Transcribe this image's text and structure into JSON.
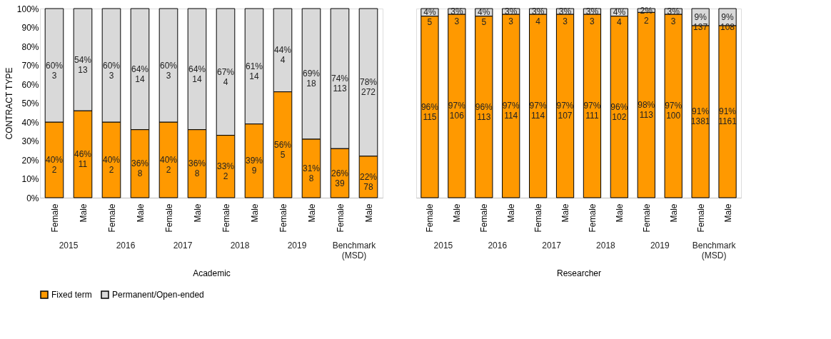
{
  "chart_data": [
    {
      "type": "bar",
      "stacked": true,
      "ylabel": "CONTRACT TYPE",
      "xlabel": "Academic",
      "categories": [
        "Female",
        "Male",
        "Female",
        "Male",
        "Female",
        "Male",
        "Female",
        "Male",
        "Female",
        "Male",
        "Female",
        "Male"
      ],
      "annotations": [
        "2015",
        "2016",
        "2017",
        "2018",
        "2019",
        "Benchmark (MSD)"
      ],
      "ylim": [
        0,
        100
      ],
      "yticks": [
        {
          "value": 0,
          "label": "0%"
        },
        {
          "value": 10,
          "label": "10%"
        },
        {
          "value": 20,
          "label": "20%"
        },
        {
          "value": 30,
          "label": "30%"
        },
        {
          "value": 40,
          "label": "40%"
        },
        {
          "value": 50,
          "label": "50%"
        },
        {
          "value": 60,
          "label": "60%"
        },
        {
          "value": 70,
          "label": "70%"
        },
        {
          "value": 80,
          "label": "80%"
        },
        {
          "value": 90,
          "label": "90%"
        },
        {
          "value": 100,
          "label": "100%"
        }
      ],
      "grid": false,
      "legend": "bottom",
      "series": [
        {
          "name": "Fixed term",
          "color": "#ff9900",
          "values": [
            40,
            46,
            40,
            36,
            40,
            36,
            33,
            39,
            56,
            31,
            26,
            22
          ],
          "value_labels": [
            "40%\n2",
            "46%\n11",
            "40%\n2",
            "36%\n8",
            "40%\n2",
            "36%\n8",
            "33%\n2",
            "39%\n9",
            "56%\n5",
            "31%\n8",
            "26%\n39",
            "22%\n78"
          ]
        },
        {
          "name": "Permanent/Open-ended",
          "color": "#d9d9d9",
          "values": [
            60,
            54,
            60,
            64,
            60,
            64,
            67,
            61,
            44,
            69,
            74,
            78
          ],
          "value_labels": [
            "60%\n3",
            "54%\n13",
            "60%\n3",
            "64%\n14",
            "60%\n3",
            "64%\n14",
            "67%\n4",
            "61%\n14",
            "44%\n4",
            "69%\n18",
            "74%\n113",
            "78%\n272"
          ]
        }
      ]
    },
    {
      "type": "bar",
      "stacked": true,
      "xlabel": "Researcher",
      "categories": [
        "Female",
        "Male",
        "Female",
        "Male",
        "Female",
        "Male",
        "Female",
        "Male",
        "Female",
        "Male",
        "Female",
        "Male"
      ],
      "annotations": [
        "2015",
        "2016",
        "2017",
        "2018",
        "2019",
        "Benchmark (MSD)"
      ],
      "ylim": [
        0,
        100
      ],
      "tick_labels": "x",
      "grid": false,
      "series": [
        {
          "color": "#ff9900",
          "values": [
            96,
            97,
            96,
            97,
            97,
            97,
            97,
            96,
            98,
            97,
            91,
            91
          ],
          "value_labels": [
            "96%\n115",
            "97%\n106",
            "96%\n113",
            "97%\n114",
            "97%\n114",
            "97%\n107",
            "97%\n111",
            "96%\n102",
            "98%\n113",
            "97%\n100",
            "91%\n1381",
            "91%\n1161"
          ]
        },
        {
          "color": "#d9d9d9",
          "values": [
            4,
            3,
            4,
            3,
            3,
            3,
            3,
            4,
            2,
            3,
            9,
            9
          ],
          "value_labels": [
            "4%\n5",
            "3%\n3",
            "4%\n5",
            "3%\n3",
            "3%\n4",
            "3%\n3",
            "3%\n3",
            "4%\n4",
            "2%\n2",
            "3%\n3",
            "9%\n137",
            "9%\n108"
          ]
        }
      ]
    }
  ]
}
